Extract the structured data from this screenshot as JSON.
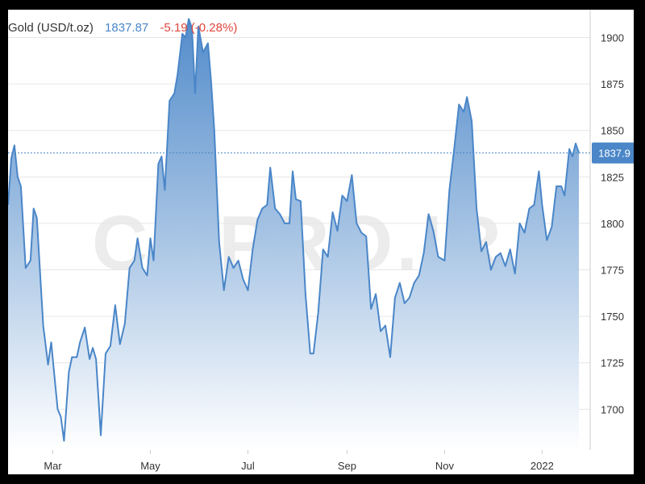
{
  "header": {
    "name": "Gold (USD/t.oz)",
    "price": "1837.87",
    "change": "-5.19 (-0.28%)"
  },
  "watermark": "CMPRO.IR",
  "colors": {
    "line": "#4a86c8",
    "fill_top": "#4a86c8",
    "fill_bottom": "#ffffff",
    "grid": "#e6e6e6",
    "change": "#e0463c",
    "label_bg": "#4a86c8"
  },
  "chart_data": {
    "type": "area",
    "y_ticks": [
      1700,
      1725,
      1750,
      1775,
      1800,
      1825,
      1850,
      1875,
      1900
    ],
    "y_tick_labels": [
      "1700",
      "1725",
      "1750",
      "1775",
      "1800",
      "1825",
      "1850",
      "1875",
      "1900"
    ],
    "ylim": [
      1678,
      1915
    ],
    "x_range": [
      "2021-02-01",
      "2022-01-24"
    ],
    "x_ticks": [
      {
        "label": "Mar",
        "date": "2021-03-01"
      },
      {
        "label": "May",
        "date": "2021-05-01"
      },
      {
        "label": "Jul",
        "date": "2021-07-01"
      },
      {
        "label": "Sep",
        "date": "2021-09-01"
      },
      {
        "label": "Nov",
        "date": "2021-11-01"
      },
      {
        "label": "2022",
        "date": "2022-01-01"
      }
    ],
    "last_value": 1837.9,
    "last_label": "1837.9",
    "grid": true,
    "points": [
      [
        "2021-02-01",
        1810
      ],
      [
        "2021-02-03",
        1835
      ],
      [
        "2021-02-05",
        1842
      ],
      [
        "2021-02-07",
        1825
      ],
      [
        "2021-02-09",
        1820
      ],
      [
        "2021-02-12",
        1776
      ],
      [
        "2021-02-15",
        1780
      ],
      [
        "2021-02-17",
        1808
      ],
      [
        "2021-02-19",
        1803
      ],
      [
        "2021-02-23",
        1745
      ],
      [
        "2021-02-26",
        1724
      ],
      [
        "2021-02-28",
        1736
      ],
      [
        "2021-03-04",
        1700
      ],
      [
        "2021-03-06",
        1696
      ],
      [
        "2021-03-08",
        1683
      ],
      [
        "2021-03-11",
        1720
      ],
      [
        "2021-03-13",
        1728
      ],
      [
        "2021-03-16",
        1728
      ],
      [
        "2021-03-18",
        1736
      ],
      [
        "2021-03-21",
        1744
      ],
      [
        "2021-03-24",
        1727
      ],
      [
        "2021-03-26",
        1733
      ],
      [
        "2021-03-28",
        1727
      ],
      [
        "2021-03-31",
        1686
      ],
      [
        "2021-04-03",
        1730
      ],
      [
        "2021-04-06",
        1734
      ],
      [
        "2021-04-09",
        1756
      ],
      [
        "2021-04-12",
        1735
      ],
      [
        "2021-04-15",
        1746
      ],
      [
        "2021-04-18",
        1776
      ],
      [
        "2021-04-21",
        1780
      ],
      [
        "2021-04-23",
        1792
      ],
      [
        "2021-04-26",
        1776
      ],
      [
        "2021-04-29",
        1772
      ],
      [
        "2021-05-01",
        1792
      ],
      [
        "2021-05-03",
        1780
      ],
      [
        "2021-05-06",
        1832
      ],
      [
        "2021-05-08",
        1836
      ],
      [
        "2021-05-10",
        1818
      ],
      [
        "2021-05-13",
        1866
      ],
      [
        "2021-05-16",
        1870
      ],
      [
        "2021-05-18",
        1880
      ],
      [
        "2021-05-21",
        1902
      ],
      [
        "2021-05-23",
        1900
      ],
      [
        "2021-05-25",
        1910
      ],
      [
        "2021-05-27",
        1905
      ],
      [
        "2021-05-29",
        1870
      ],
      [
        "2021-05-31",
        1906
      ],
      [
        "2021-06-03",
        1892
      ],
      [
        "2021-06-06",
        1897
      ],
      [
        "2021-06-08",
        1876
      ],
      [
        "2021-06-10",
        1850
      ],
      [
        "2021-06-13",
        1790
      ],
      [
        "2021-06-16",
        1764
      ],
      [
        "2021-06-19",
        1782
      ],
      [
        "2021-06-22",
        1776
      ],
      [
        "2021-06-25",
        1780
      ],
      [
        "2021-06-28",
        1770
      ],
      [
        "2021-07-01",
        1764
      ],
      [
        "2021-07-04",
        1786
      ],
      [
        "2021-07-07",
        1802
      ],
      [
        "2021-07-10",
        1808
      ],
      [
        "2021-07-13",
        1810
      ],
      [
        "2021-07-15",
        1830
      ],
      [
        "2021-07-18",
        1808
      ],
      [
        "2021-07-21",
        1805
      ],
      [
        "2021-07-24",
        1800
      ],
      [
        "2021-07-27",
        1800
      ],
      [
        "2021-07-29",
        1828
      ],
      [
        "2021-07-31",
        1813
      ],
      [
        "2021-08-03",
        1812
      ],
      [
        "2021-08-06",
        1762
      ],
      [
        "2021-08-09",
        1730
      ],
      [
        "2021-08-11",
        1730
      ],
      [
        "2021-08-14",
        1752
      ],
      [
        "2021-08-17",
        1786
      ],
      [
        "2021-08-20",
        1782
      ],
      [
        "2021-08-23",
        1806
      ],
      [
        "2021-08-26",
        1796
      ],
      [
        "2021-08-29",
        1815
      ],
      [
        "2021-09-01",
        1812
      ],
      [
        "2021-09-04",
        1826
      ],
      [
        "2021-09-07",
        1800
      ],
      [
        "2021-09-10",
        1795
      ],
      [
        "2021-09-13",
        1793
      ],
      [
        "2021-09-16",
        1754
      ],
      [
        "2021-09-19",
        1762
      ],
      [
        "2021-09-22",
        1742
      ],
      [
        "2021-09-25",
        1745
      ],
      [
        "2021-09-28",
        1728
      ],
      [
        "2021-10-01",
        1760
      ],
      [
        "2021-10-04",
        1768
      ],
      [
        "2021-10-07",
        1757
      ],
      [
        "2021-10-10",
        1760
      ],
      [
        "2021-10-13",
        1768
      ],
      [
        "2021-10-16",
        1772
      ],
      [
        "2021-10-19",
        1784
      ],
      [
        "2021-10-22",
        1805
      ],
      [
        "2021-10-25",
        1796
      ],
      [
        "2021-10-28",
        1782
      ],
      [
        "2021-11-01",
        1780
      ],
      [
        "2021-11-04",
        1818
      ],
      [
        "2021-11-07",
        1840
      ],
      [
        "2021-11-10",
        1864
      ],
      [
        "2021-11-13",
        1860
      ],
      [
        "2021-11-15",
        1868
      ],
      [
        "2021-11-18",
        1855
      ],
      [
        "2021-11-21",
        1808
      ],
      [
        "2021-11-24",
        1785
      ],
      [
        "2021-11-27",
        1790
      ],
      [
        "2021-11-30",
        1775
      ],
      [
        "2021-12-03",
        1782
      ],
      [
        "2021-12-06",
        1784
      ],
      [
        "2021-12-09",
        1777
      ],
      [
        "2021-12-12",
        1786
      ],
      [
        "2021-12-15",
        1773
      ],
      [
        "2021-12-18",
        1800
      ],
      [
        "2021-12-21",
        1795
      ],
      [
        "2021-12-24",
        1808
      ],
      [
        "2021-12-27",
        1810
      ],
      [
        "2021-12-30",
        1828
      ],
      [
        "2022-01-01",
        1810
      ],
      [
        "2022-01-04",
        1791
      ],
      [
        "2022-01-07",
        1798
      ],
      [
        "2022-01-10",
        1820
      ],
      [
        "2022-01-13",
        1820
      ],
      [
        "2022-01-15",
        1815
      ],
      [
        "2022-01-18",
        1840
      ],
      [
        "2022-01-20",
        1836
      ],
      [
        "2022-01-22",
        1843
      ],
      [
        "2022-01-24",
        1838
      ]
    ]
  }
}
